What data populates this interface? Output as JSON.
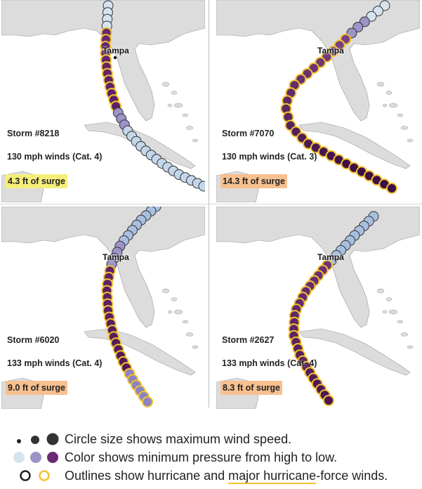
{
  "map_labels": {
    "city": "Tampa"
  },
  "panels": [
    {
      "storm": "Storm #8218",
      "wind": "130 mph winds (Cat. 4)",
      "surge": "4.3 ft of surge",
      "surge_color": "#f5ef7a"
    },
    {
      "storm": "Storm #7070",
      "wind": "130 mph winds (Cat. 3)",
      "surge": "14.3 ft of surge",
      "surge_color": "#f7c08f"
    },
    {
      "storm": "Storm #6020",
      "wind": "133 mph winds (Cat. 4)",
      "surge": "9.0 ft of surge",
      "surge_color": "#f7c08f"
    },
    {
      "storm": "Storm #2627",
      "wind": "133 mph winds (Cat. 4)",
      "surge": "8.3 ft of surge",
      "surge_color": "#f7c08f"
    }
  ],
  "legend": {
    "size_text": "Circle size shows maximum wind speed.",
    "color_text": "Color shows minimum pressure from high to low.",
    "outline_text_a": "Outlines show hurricane and ",
    "outline_text_b": "major hurricane",
    "outline_text_c": "-force winds."
  },
  "colors": {
    "land": "#dcdcdc",
    "water": "#ffffff",
    "pressure_high": "#d6e4f0",
    "pressure_mid": "#9d93c9",
    "pressure_low": "#4a1652",
    "hurricane_outline": "#333333",
    "major_outline": "#f2c230"
  }
}
